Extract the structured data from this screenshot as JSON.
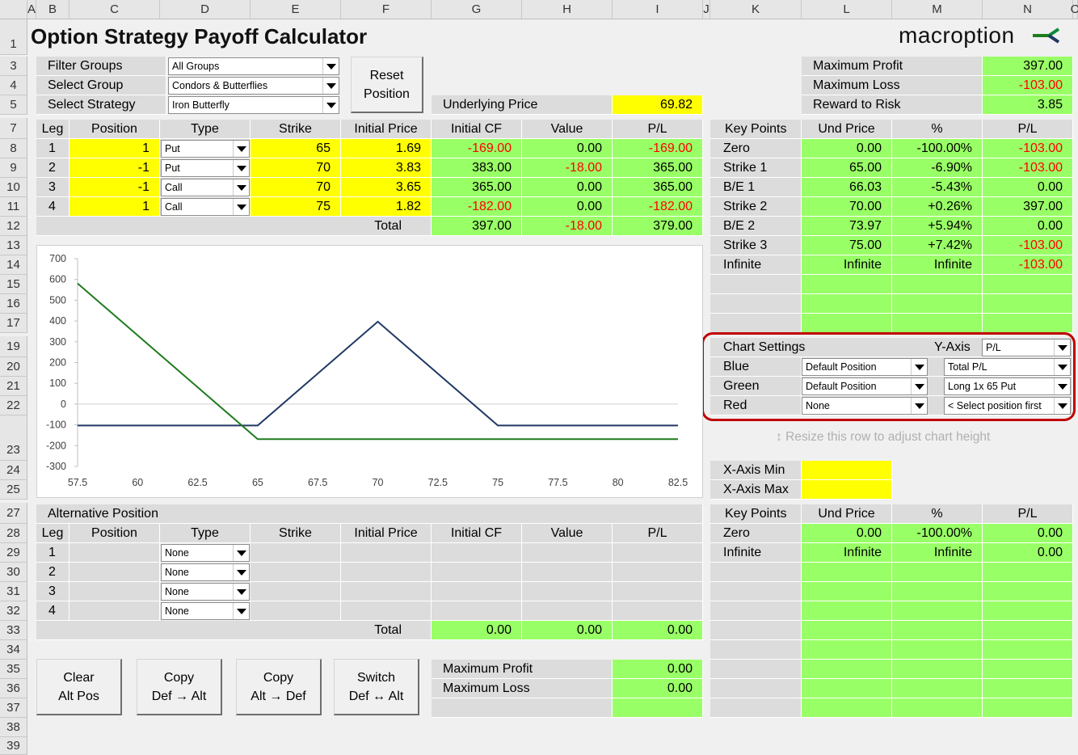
{
  "sheet": {
    "columns": [
      "A",
      "B",
      "C",
      "D",
      "E",
      "F",
      "G",
      "H",
      "I",
      "J",
      "K",
      "L",
      "M",
      "N",
      "O"
    ],
    "rows": [
      "1",
      "3",
      "4",
      "5",
      "7",
      "8",
      "9",
      "10",
      "11",
      "12",
      "13",
      "14",
      "15",
      "16",
      "17",
      "19",
      "20",
      "21",
      "22",
      "23",
      "24",
      "25",
      "27",
      "28",
      "29",
      "30",
      "31",
      "32",
      "33",
      "34",
      "35",
      "36",
      "37",
      "38",
      "39"
    ]
  },
  "title": "Option Strategy Payoff Calculator",
  "logo": {
    "text": "macroption"
  },
  "filters": {
    "filter_groups_label": "Filter Groups",
    "filter_groups_value": "All Groups",
    "select_group_label": "Select Group",
    "select_group_value": "Condors & Butterflies",
    "select_strategy_label": "Select Strategy",
    "select_strategy_value": "Iron Butterfly"
  },
  "reset_button": {
    "line1": "Reset",
    "line2": "Position"
  },
  "underlying": {
    "label": "Underlying Price",
    "value": "69.82"
  },
  "summary": {
    "max_profit_label": "Maximum Profit",
    "max_profit": "397.00",
    "max_loss_label": "Maximum Loss",
    "max_loss": "-103.00",
    "rr_label": "Reward to Risk",
    "rr": "3.85"
  },
  "legs_header": [
    "Leg",
    "Position",
    "Type",
    "Strike",
    "Initial Price",
    "Initial CF",
    "Value",
    "P/L"
  ],
  "legs": [
    {
      "leg": "1",
      "position": "1",
      "type": "Put",
      "strike": "65",
      "price": "1.69",
      "cf": "-169.00",
      "value": "0.00",
      "pl": "-169.00"
    },
    {
      "leg": "2",
      "position": "-1",
      "type": "Put",
      "strike": "70",
      "price": "3.83",
      "cf": "383.00",
      "value": "-18.00",
      "pl": "365.00"
    },
    {
      "leg": "3",
      "position": "-1",
      "type": "Call",
      "strike": "70",
      "price": "3.65",
      "cf": "365.00",
      "value": "0.00",
      "pl": "365.00"
    },
    {
      "leg": "4",
      "position": "1",
      "type": "Call",
      "strike": "75",
      "price": "1.82",
      "cf": "-182.00",
      "value": "0.00",
      "pl": "-182.00"
    }
  ],
  "legs_total": {
    "label": "Total",
    "cf": "397.00",
    "value": "-18.00",
    "pl": "379.00"
  },
  "key_points_header": [
    "Key Points",
    "Und Price",
    "%",
    "P/L"
  ],
  "key_points": [
    {
      "name": "Zero",
      "price": "0.00",
      "pct": "-100.00%",
      "pl": "-103.00"
    },
    {
      "name": "Strike 1",
      "price": "65.00",
      "pct": "-6.90%",
      "pl": "-103.00"
    },
    {
      "name": "B/E 1",
      "price": "66.03",
      "pct": "-5.43%",
      "pl": "0.00"
    },
    {
      "name": "Strike 2",
      "price": "70.00",
      "pct": "+0.26%",
      "pl": "397.00"
    },
    {
      "name": "B/E 2",
      "price": "73.97",
      "pct": "+5.94%",
      "pl": "0.00"
    },
    {
      "name": "Strike 3",
      "price": "75.00",
      "pct": "+7.42%",
      "pl": "-103.00"
    },
    {
      "name": "Infinite",
      "price": "Infinite",
      "pct": "Infinite",
      "pl": "-103.00"
    }
  ],
  "chart_settings": {
    "title": "Chart Settings",
    "yaxis_label": "Y-Axis",
    "yaxis_value": "P/L",
    "blue_label": "Blue",
    "blue_pos": "Default Position",
    "blue_val": "Total P/L",
    "green_label": "Green",
    "green_pos": "Default Position",
    "green_val": "Long 1x 65 Put",
    "red_label": "Red",
    "red_pos": "None",
    "red_val": "< Select position first"
  },
  "resize_hint": "Resize this row to adjust chart height",
  "xaxis": {
    "min_label": "X-Axis Min",
    "max_label": "X-Axis Max"
  },
  "alt": {
    "title": "Alternative Position",
    "header": [
      "Leg",
      "Position",
      "Type",
      "Strike",
      "Initial Price",
      "Initial CF",
      "Value",
      "P/L"
    ],
    "legs": [
      {
        "leg": "1",
        "type": "None"
      },
      {
        "leg": "2",
        "type": "None"
      },
      {
        "leg": "3",
        "type": "None"
      },
      {
        "leg": "4",
        "type": "None"
      }
    ],
    "total": {
      "label": "Total",
      "cf": "0.00",
      "value": "0.00",
      "pl": "0.00"
    }
  },
  "alt_key_points_header": [
    "Key Points",
    "Und Price",
    "%",
    "P/L"
  ],
  "alt_key_points": [
    {
      "name": "Zero",
      "price": "0.00",
      "pct": "-100.00%",
      "pl": "0.00"
    },
    {
      "name": "Infinite",
      "price": "Infinite",
      "pct": "Infinite",
      "pl": "0.00"
    }
  ],
  "buttons": [
    {
      "line1": "Clear",
      "line2": "Alt Pos"
    },
    {
      "line1": "Copy",
      "line2": "Def → Alt"
    },
    {
      "line1": "Copy",
      "line2": "Alt → Def"
    },
    {
      "line1": "Switch",
      "line2": "Def ↔ Alt"
    }
  ],
  "alt_summary": {
    "max_profit_label": "Maximum Profit",
    "max_profit": "0.00",
    "max_loss_label": "Maximum Loss",
    "max_loss": "0.00"
  },
  "colors": {
    "blue_line": "#1f3864",
    "green_line": "#1e7b1e",
    "highlight": "#c00000"
  },
  "chart_data": {
    "type": "line",
    "x": [
      57.5,
      60,
      62.5,
      65,
      67.5,
      70,
      72.5,
      75,
      77.5,
      80,
      82.5
    ],
    "x_ticks": [
      "57.5",
      "60",
      "62.5",
      "65",
      "67.5",
      "70",
      "72.5",
      "75",
      "77.5",
      "80",
      "82.5"
    ],
    "y_ticks": [
      "700",
      "600",
      "500",
      "400",
      "300",
      "200",
      "100",
      "0",
      "-100",
      "-200",
      "-300"
    ],
    "ylim": [
      -300,
      700
    ],
    "xlim": [
      57.5,
      82.5
    ],
    "series": [
      {
        "color": "blue",
        "points": [
          [
            57.5,
            -103
          ],
          [
            65,
            -103
          ],
          [
            70,
            397
          ],
          [
            75,
            -103
          ],
          [
            82.5,
            -103
          ]
        ]
      },
      {
        "color": "green",
        "points": [
          [
            57.5,
            581
          ],
          [
            65,
            -169
          ],
          [
            82.5,
            -169
          ]
        ]
      }
    ]
  }
}
